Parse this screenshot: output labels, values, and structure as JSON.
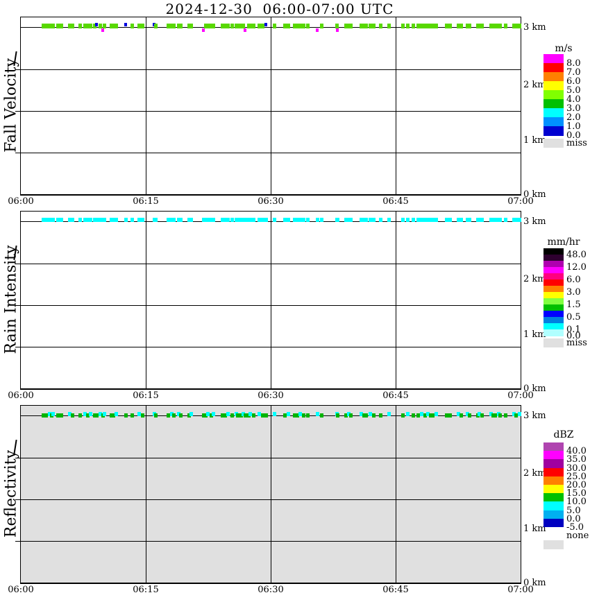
{
  "page_title": "2024-12-30  06:00-07:00 UTC",
  "chart_data": {
    "type": "heatmap",
    "title": "2024-12-30  06:00-07:00 UTC",
    "x_axis": {
      "ticks": [
        "06:00",
        "06:15",
        "06:30",
        "06:45",
        "07:00"
      ],
      "span_minutes": 60
    },
    "y_axis": {
      "ticks": [
        "3 km",
        "2 km",
        "1 km",
        "0 km"
      ]
    },
    "observation_note": "precipitation echoes only in topmost range gate near 3 km",
    "mark_times_min": [
      2.7,
      3.0,
      3.4,
      3.7,
      3.8,
      4.4,
      4.8,
      5.8,
      6.2,
      7.1,
      7.7,
      8.0,
      8.3,
      8.8,
      9.1,
      9.5,
      9.8,
      10.0,
      10.8,
      11.1,
      11.4,
      12.6,
      13.3,
      14.2,
      14.6,
      16.0,
      16.2,
      17.7,
      18.1,
      18.3,
      18.9,
      19.2,
      20.2,
      20.4,
      21.9,
      22.2,
      22.4,
      22.8,
      23.1,
      24.2,
      24.5,
      24.8,
      25.3,
      25.8,
      26.0,
      26.4,
      26.7,
      26.9,
      27.3,
      27.5,
      27.9,
      28.6,
      29.0,
      29.4,
      30.4,
      31.7,
      32.1,
      32.8,
      33.2,
      33.5,
      33.9,
      34.4,
      35.6,
      36.1,
      37.9,
      38.0,
      39.0,
      39.3,
      39.6,
      40.8,
      41.2,
      41.4,
      41.9,
      42.3,
      43.2,
      44.2,
      45.8,
      46.4,
      47.1,
      47.7,
      48.1,
      48.5,
      48.8,
      49.2,
      49.4,
      49.8,
      51.1,
      51.5,
      52.5,
      52.8,
      53.6,
      53.8,
      54.8,
      55.0,
      55.3,
      56.4,
      56.7,
      56.9,
      57.3,
      57.5,
      58.2,
      59.2,
      59.4,
      59.8
    ],
    "mark_color_key": {
      "g": "#58d800",
      "b": "#0000dd",
      "m": "#ff00ff",
      "c": "#00ffff",
      "G": "#00b400"
    },
    "panels": [
      {
        "name": "Fall Velocity",
        "units": "m/s",
        "background": "#ffffff",
        "mark_colors": "ggggggggggggggbgmggggbgggbggggggggmggggggggggggmgggggbggggggggmggmgggggggggggggggggggggggggggggggggggggg",
        "legend": {
          "title": "m/s",
          "entries": [
            {
              "color": "#ff00ff",
              "label": "8.0"
            },
            {
              "color": "#ff0000",
              "label": "7.0"
            },
            {
              "color": "#ff8000",
              "label": "6.0"
            },
            {
              "color": "#ffff00",
              "label": "5.0"
            },
            {
              "color": "#80ff00",
              "label": "4.0"
            },
            {
              "color": "#00c000",
              "label": "3.0"
            },
            {
              "color": "#00ffff",
              "label": "2.0"
            },
            {
              "color": "#0090ff",
              "label": "1.0"
            },
            {
              "color": "#0000d0",
              "label": "0.0"
            }
          ],
          "missing": {
            "label": "miss",
            "color": "#e0e0e0"
          }
        }
      },
      {
        "name": "Rain Intensity",
        "units": "mm/hr",
        "background": "#ffffff",
        "mark_colors": "c",
        "legend": {
          "title": "mm/hr",
          "entries": [
            {
              "color": "#000000",
              "label": "48.0"
            },
            {
              "color": "#2e0030",
              "label": ""
            },
            {
              "color": "#b000b0",
              "label": "12.0"
            },
            {
              "color": "#ff00ff",
              "label": ""
            },
            {
              "color": "#ff0080",
              "label": "6.0"
            },
            {
              "color": "#ff0000",
              "label": ""
            },
            {
              "color": "#ff8000",
              "label": "3.0"
            },
            {
              "color": "#ffff00",
              "label": ""
            },
            {
              "color": "#80ff40",
              "label": "1.5"
            },
            {
              "color": "#00c000",
              "label": ""
            },
            {
              "color": "#0000ff",
              "label": "0.5"
            },
            {
              "color": "#0080e0",
              "label": ""
            },
            {
              "color": "#00ffff",
              "label": "0.1"
            },
            {
              "color": "#b0ffff",
              "label": "0.0"
            }
          ],
          "missing": {
            "label": "miss",
            "color": "#e0e0e0"
          }
        }
      },
      {
        "name": "Reflectivity",
        "units": "dBZ",
        "background": "#e0e0e0",
        "mark_colors": "GGcGcGGcGGcGc",
        "legend": {
          "title": "dBZ",
          "entries": [
            {
              "color": "#b044b0",
              "label": "40.0"
            },
            {
              "color": "#ff00ff",
              "label": "35.0"
            },
            {
              "color": "#a000a0",
              "label": "30.0"
            },
            {
              "color": "#ff0000",
              "label": "25.0"
            },
            {
              "color": "#ff8000",
              "label": "20.0"
            },
            {
              "color": "#ffff00",
              "label": "15.0"
            },
            {
              "color": "#00c000",
              "label": "10.0"
            },
            {
              "color": "#00ffff",
              "label": "5.0"
            },
            {
              "color": "#00b0f0",
              "label": "0.0"
            },
            {
              "color": "#0000c0",
              "label": "-5.0"
            }
          ],
          "missing": {
            "label": "none",
            "color": "#e0e0e0"
          }
        }
      }
    ]
  }
}
